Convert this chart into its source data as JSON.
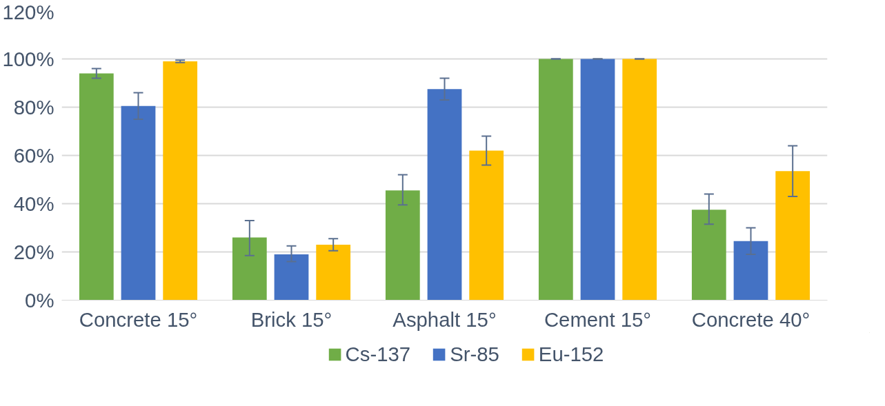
{
  "chart_data": {
    "type": "bar",
    "categories": [
      "Concrete 15°",
      "Brick 15°",
      "Asphalt 15°",
      "Cement 15°",
      "Concrete 40°"
    ],
    "series": [
      {
        "name": "Cs-137",
        "color": "#70ad47",
        "values": [
          94,
          26,
          45.5,
          100,
          37.5
        ],
        "errors": [
          [
            92,
            96
          ],
          [
            18.5,
            33
          ],
          [
            39.5,
            52
          ],
          0,
          [
            31.5,
            44
          ]
        ]
      },
      {
        "name": "Sr-85",
        "color": "#4472c4",
        "values": [
          80.5,
          19,
          87.5,
          100,
          24.5
        ],
        "errors": [
          [
            75,
            86
          ],
          [
            16,
            22.5
          ],
          [
            83,
            92
          ],
          0,
          [
            19,
            30
          ]
        ]
      },
      {
        "name": "Eu-152",
        "color": "#ffc000",
        "values": [
          99,
          23,
          62,
          100,
          53.5
        ],
        "errors": [
          [
            98.5,
            99.5
          ],
          [
            20.5,
            25.5
          ],
          [
            56,
            68
          ],
          0,
          [
            43,
            64
          ]
        ]
      }
    ],
    "ylim": [
      0,
      120
    ],
    "yticks": [
      {
        "value": 0,
        "label": "0%"
      },
      {
        "value": 20,
        "label": "20%"
      },
      {
        "value": 40,
        "label": "40%"
      },
      {
        "value": 60,
        "label": "60%"
      },
      {
        "value": 80,
        "label": "80%"
      },
      {
        "value": 100,
        "label": "100%"
      },
      {
        "value": 120,
        "label": "120%"
      }
    ],
    "grid": "y",
    "legend": "bottom"
  }
}
